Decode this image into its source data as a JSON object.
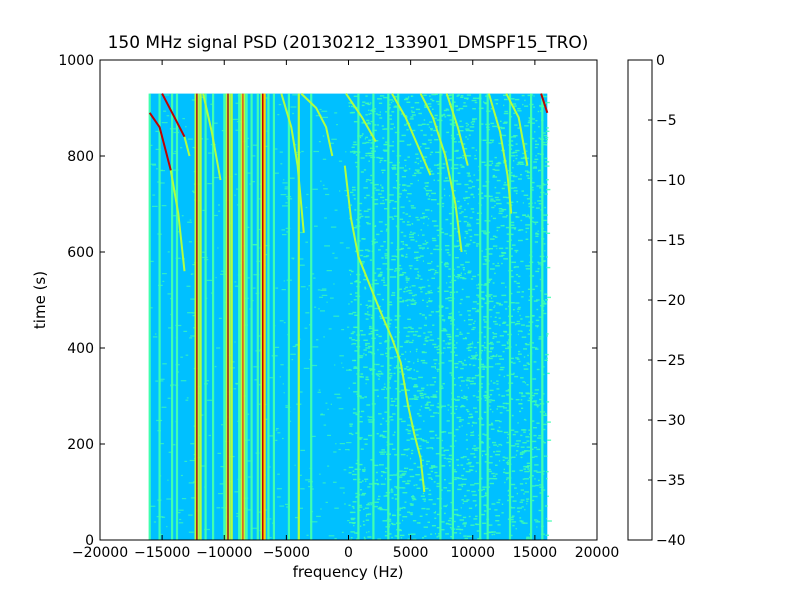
{
  "chart_data": {
    "type": "heatmap",
    "title": "150 MHz signal PSD (20130212_133901_DMSPF15_TRO)",
    "xlabel": "frequency (Hz)",
    "ylabel": "time (s)",
    "xlim": [
      -20000,
      20000
    ],
    "ylim": [
      0,
      1000
    ],
    "x_ticks": [
      -20000,
      -15000,
      -10000,
      -5000,
      0,
      5000,
      10000,
      15000,
      20000
    ],
    "x_tick_labels": [
      "−20000",
      "−15000",
      "−10000",
      "−5000",
      "0",
      "5000",
      "10000",
      "15000",
      "20000"
    ],
    "y_ticks": [
      0,
      200,
      400,
      600,
      800,
      1000
    ],
    "y_tick_labels": [
      "0",
      "200",
      "400",
      "600",
      "800",
      "1000"
    ],
    "data_extent": {
      "x": [
        -16000,
        16000
      ],
      "y": [
        0,
        930
      ]
    },
    "colorbar": {
      "range": [
        -40,
        0
      ],
      "levels": [
        -40,
        -35,
        -30,
        -25,
        -20,
        -15,
        -10,
        -5,
        0
      ],
      "tick_labels": [
        "−40",
        "−35",
        "−30",
        "−25",
        "−20",
        "−15",
        "−10",
        "−5",
        "0"
      ],
      "colors": [
        "#0000c8",
        "#0050ff",
        "#00c0ff",
        "#40ffb0",
        "#b0ff40",
        "#ffd000",
        "#ff5000",
        "#c00000"
      ]
    },
    "background_level_db": -27,
    "high_noise_region_hz": [
      0,
      16000
    ],
    "vertical_lines": [
      {
        "freq": -16000,
        "level": -22
      },
      {
        "freq": -15200,
        "level": -22
      },
      {
        "freq": -14200,
        "level": -22
      },
      {
        "freq": -13800,
        "level": -22
      },
      {
        "freq": -12200,
        "level": -2
      },
      {
        "freq": -11900,
        "level": -17
      },
      {
        "freq": -11500,
        "level": -22
      },
      {
        "freq": -10900,
        "level": -22
      },
      {
        "freq": -10000,
        "level": -22
      },
      {
        "freq": -9700,
        "level": -2
      },
      {
        "freq": -9400,
        "level": -17
      },
      {
        "freq": -8800,
        "level": -22
      },
      {
        "freq": -8500,
        "level": -8
      },
      {
        "freq": -8200,
        "level": -22
      },
      {
        "freq": -7800,
        "level": -22
      },
      {
        "freq": -7300,
        "level": -22
      },
      {
        "freq": -6900,
        "level": -2
      },
      {
        "freq": -6750,
        "level": -12
      },
      {
        "freq": -6450,
        "level": -22
      },
      {
        "freq": -6000,
        "level": -22
      },
      {
        "freq": -4800,
        "level": -22
      },
      {
        "freq": -4000,
        "level": -17
      },
      {
        "freq": -3000,
        "level": -22
      },
      {
        "freq": 800,
        "level": -22
      },
      {
        "freq": 2000,
        "level": -22
      },
      {
        "freq": 3200,
        "level": -22
      },
      {
        "freq": 4000,
        "level": -22
      },
      {
        "freq": 7400,
        "level": -22
      },
      {
        "freq": 8400,
        "level": -22
      },
      {
        "freq": 10600,
        "level": -22
      },
      {
        "freq": 11200,
        "level": -22
      },
      {
        "freq": 13000,
        "level": -22
      },
      {
        "freq": 14700,
        "level": -22
      },
      {
        "freq": 15600,
        "level": -22
      }
    ],
    "drifting_tracks": [
      {
        "level": -2,
        "points": [
          [
            -16000,
            890
          ],
          [
            -15200,
            860
          ],
          [
            -14800,
            820
          ],
          [
            -14300,
            770
          ]
        ]
      },
      {
        "level": -17,
        "points": [
          [
            -14300,
            770
          ],
          [
            -13700,
            680
          ],
          [
            -13200,
            560
          ]
        ]
      },
      {
        "level": -2,
        "points": [
          [
            -15000,
            930
          ],
          [
            -14000,
            880
          ],
          [
            -13200,
            840
          ]
        ]
      },
      {
        "level": -17,
        "points": [
          [
            -13200,
            840
          ],
          [
            -12800,
            800
          ]
        ]
      },
      {
        "level": -17,
        "points": [
          [
            -11700,
            930
          ],
          [
            -11000,
            850
          ],
          [
            -10300,
            750
          ]
        ]
      },
      {
        "level": -17,
        "points": [
          [
            -5400,
            930
          ],
          [
            -4600,
            860
          ],
          [
            -4100,
            780
          ],
          [
            -3600,
            640
          ]
        ]
      },
      {
        "level": -17,
        "points": [
          [
            -3800,
            930
          ],
          [
            -2600,
            900
          ],
          [
            -1800,
            860
          ],
          [
            -1300,
            800
          ]
        ]
      },
      {
        "level": -17,
        "points": [
          [
            -200,
            930
          ],
          [
            1100,
            880
          ],
          [
            2200,
            830
          ]
        ]
      },
      {
        "level": -17,
        "points": [
          [
            -300,
            780
          ],
          [
            200,
            670
          ],
          [
            800,
            590
          ],
          [
            1500,
            545
          ],
          [
            2500,
            480
          ],
          [
            3500,
            420
          ],
          [
            4200,
            370
          ],
          [
            4800,
            280
          ],
          [
            5300,
            220
          ],
          [
            5800,
            170
          ],
          [
            6100,
            100
          ]
        ]
      },
      {
        "level": -17,
        "points": [
          [
            3500,
            930
          ],
          [
            4600,
            880
          ],
          [
            5600,
            820
          ],
          [
            6600,
            760
          ]
        ]
      },
      {
        "level": -17,
        "points": [
          [
            5800,
            930
          ],
          [
            6800,
            880
          ],
          [
            7800,
            800
          ],
          [
            8600,
            700
          ],
          [
            9100,
            600
          ]
        ]
      },
      {
        "level": -17,
        "points": [
          [
            7900,
            930
          ],
          [
            8800,
            860
          ],
          [
            9600,
            780
          ]
        ]
      },
      {
        "level": -17,
        "points": [
          [
            11300,
            930
          ],
          [
            12200,
            850
          ],
          [
            12800,
            760
          ],
          [
            13100,
            680
          ]
        ]
      },
      {
        "level": -17,
        "points": [
          [
            12700,
            930
          ],
          [
            13700,
            880
          ],
          [
            14400,
            780
          ]
        ]
      },
      {
        "level": -2,
        "points": [
          [
            15500,
            930
          ],
          [
            16000,
            890
          ]
        ]
      }
    ]
  }
}
